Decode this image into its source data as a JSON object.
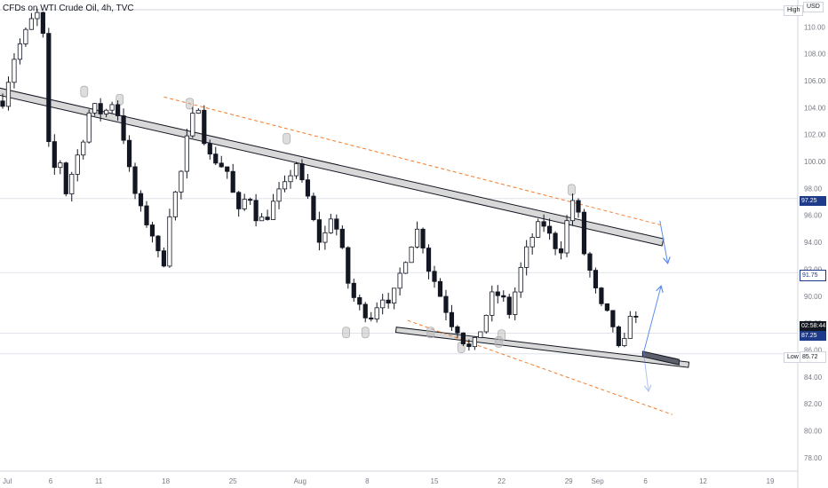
{
  "header": {
    "symbol_title": "CFDs on WTI Crude Oil, 4h, TVC"
  },
  "axis": {
    "currency_label": "USD"
  },
  "badges": {
    "high_label": "High",
    "low_label": "Low",
    "low_value": "85.72",
    "countdown": "02:58:44",
    "last_price": "87.25",
    "level_9725": "97.25",
    "level_9175": "91.75"
  },
  "colors": {
    "candle_up": "#ffffff",
    "candle_down": "#131722",
    "channel": "#131722",
    "channel_fill": "#d8d8d8",
    "dashed_channel": "#f57c2a",
    "projection_arrow": "#5b8def",
    "badge_blue": "#1e3a8a",
    "badge_dark": "#131722"
  },
  "chart_data": {
    "type": "candlestick",
    "title": "CFDs on WTI Crude Oil, 4h, TVC",
    "y_unit": "USD",
    "ylim": [
      77,
      112
    ],
    "y_ticks": [
      78,
      80,
      82,
      84,
      86,
      88,
      90,
      92,
      94,
      96,
      98,
      100,
      102,
      104,
      106,
      108,
      110
    ],
    "x_ticks": [
      "Jul",
      "6",
      "11",
      "18",
      "25",
      "Aug",
      "8",
      "15",
      "22",
      "29",
      "Sep",
      "6",
      "12",
      "19"
    ],
    "x_tick_days": [
      0,
      5,
      10,
      17,
      24,
      31,
      38,
      45,
      52,
      59,
      62,
      67,
      73,
      80
    ],
    "last_day": 66.5,
    "horizontal_levels": [
      97.25,
      91.75,
      87.25,
      85.72
    ],
    "close_path": [
      [
        0,
        104.5
      ],
      [
        1.3,
        108
      ],
      [
        2.5,
        109.7
      ],
      [
        3.5,
        111.2
      ],
      [
        4.3,
        109
      ],
      [
        5,
        98
      ],
      [
        5.8,
        101
      ],
      [
        6.5,
        97.5
      ],
      [
        7.5,
        99.8
      ],
      [
        8.3,
        101.5
      ],
      [
        9.2,
        104.2
      ],
      [
        10.5,
        103.5
      ],
      [
        11.6,
        104.6
      ],
      [
        12.5,
        102.2
      ],
      [
        13.4,
        98.5
      ],
      [
        14.3,
        96.5
      ],
      [
        15.2,
        95.2
      ],
      [
        16,
        94
      ],
      [
        16.6,
        91.2
      ],
      [
        17.3,
        96
      ],
      [
        18.5,
        98.8
      ],
      [
        19.5,
        102.8
      ],
      [
        20.4,
        104.2
      ],
      [
        21.3,
        100.5
      ],
      [
        22.4,
        100
      ],
      [
        23.5,
        99.2
      ],
      [
        24.5,
        96
      ],
      [
        25.6,
        97.8
      ],
      [
        26.6,
        95.5
      ],
      [
        27.6,
        96
      ],
      [
        28.6,
        97.5
      ],
      [
        29.6,
        98.3
      ],
      [
        30.5,
        100.2
      ],
      [
        31.1,
        98.5
      ],
      [
        32,
        97
      ],
      [
        32.8,
        94
      ],
      [
        33.6,
        94.6
      ],
      [
        34.3,
        96.2
      ],
      [
        35.2,
        94
      ],
      [
        36,
        91
      ],
      [
        36.8,
        89.5
      ],
      [
        37.7,
        88.8
      ],
      [
        38.5,
        88.5
      ],
      [
        39.5,
        90.2
      ],
      [
        40.3,
        89
      ],
      [
        41.2,
        91.2
      ],
      [
        42.3,
        93.5
      ],
      [
        43.4,
        95.2
      ],
      [
        44.3,
        92.2
      ],
      [
        45.1,
        91
      ],
      [
        45.9,
        89.5
      ],
      [
        46.8,
        88
      ],
      [
        47.5,
        87.5
      ],
      [
        48.2,
        86.4
      ],
      [
        48.8,
        86
      ],
      [
        49.4,
        86.8
      ],
      [
        50.2,
        88.2
      ],
      [
        51.1,
        90.2
      ],
      [
        52,
        90
      ],
      [
        52.9,
        88.6
      ],
      [
        53.6,
        91
      ],
      [
        54.4,
        93
      ],
      [
        55.3,
        94.6
      ],
      [
        56.2,
        95.6
      ],
      [
        57.2,
        94.2
      ],
      [
        58.1,
        93.2
      ],
      [
        58.8,
        95.5
      ],
      [
        59.6,
        97.7
      ],
      [
        60.1,
        95.5
      ],
      [
        60.6,
        93.2
      ],
      [
        61.4,
        91.4
      ],
      [
        62.2,
        89.3
      ],
      [
        62.8,
        88.8
      ],
      [
        63.5,
        88.1
      ],
      [
        64.2,
        86
      ],
      [
        64.8,
        86.5
      ],
      [
        65.5,
        89.2
      ],
      [
        66.1,
        88
      ],
      [
        66.5,
        87.3
      ]
    ],
    "annotations": {
      "descending_channel_resistance": {
        "from": [
          -1,
          105.3
        ],
        "to": [
          68.8,
          94
        ]
      },
      "descending_channel_support": {
        "from": [
          41,
          87.5
        ],
        "to": [
          71.5,
          84.9
        ]
      },
      "support_zone_highlight": {
        "from": [
          66.7,
          85.7
        ],
        "to": [
          70.5,
          85.1
        ]
      },
      "dashed_upper_line": {
        "from": [
          16.8,
          104.8
        ],
        "to": [
          68.5,
          95.3
        ]
      },
      "dashed_lower_line": {
        "from": [
          42.2,
          88.2
        ],
        "to": [
          69.8,
          81.2
        ]
      },
      "projection_arrows": [
        {
          "from": [
            66.8,
            85.8
          ],
          "to": [
            68.6,
            90.7
          ]
        },
        {
          "from": [
            68.5,
            95.6
          ],
          "to": [
            69.3,
            92.5
          ]
        },
        {
          "from": [
            66.8,
            85.8
          ],
          "to": [
            67.3,
            83
          ]
        }
      ],
      "touch_markers": [
        [
          8.5,
          105.2
        ],
        [
          12.2,
          104.6
        ],
        [
          19.5,
          104.3
        ],
        [
          29.6,
          101.7
        ],
        [
          35.8,
          87.3
        ],
        [
          37.8,
          87.3
        ],
        [
          44.6,
          87.3
        ],
        [
          47.8,
          86.2
        ],
        [
          51.7,
          86.6
        ],
        [
          52,
          87.1
        ],
        [
          59.3,
          97.9
        ]
      ]
    }
  }
}
